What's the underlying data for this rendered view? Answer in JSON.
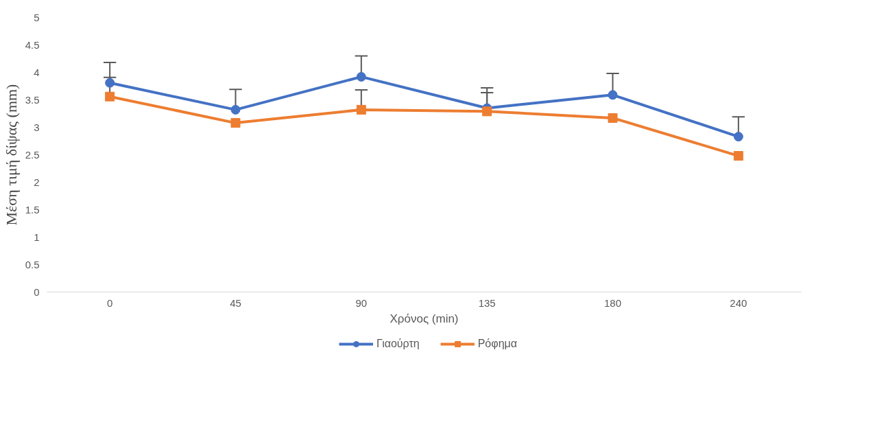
{
  "chart_data": {
    "type": "line",
    "xlabel": "Χρόνος (min)",
    "ylabel": "Μέση τιμή δίψας (mm)",
    "categories": [
      "0",
      "45",
      "90",
      "135",
      "180",
      "240"
    ],
    "ylim": [
      0,
      5
    ],
    "yticks": [
      0,
      0.5,
      1,
      1.5,
      2,
      2.5,
      3,
      3.5,
      4,
      4.5,
      5
    ],
    "grid": false,
    "legend": "bottom",
    "line_style": "solid",
    "series": [
      {
        "name": "Γιαούρτη",
        "color": "#4472c4",
        "marker": "circle",
        "values": [
          3.81,
          3.32,
          3.92,
          3.35,
          3.59,
          2.83
        ],
        "errors": [
          [
            3.81,
            4.18
          ],
          [
            3.32,
            3.69
          ],
          [
            3.92,
            4.3
          ],
          [
            3.35,
            3.72
          ],
          [
            3.59,
            3.98
          ],
          [
            2.83,
            3.19
          ]
        ]
      },
      {
        "name": "Ρόφημα",
        "color": "#ed7d31",
        "marker": "square",
        "values": [
          3.56,
          3.08,
          3.32,
          3.29,
          3.17,
          2.48
        ],
        "errors": [
          [
            3.56,
            3.91
          ],
          null,
          [
            3.32,
            3.68
          ],
          [
            3.29,
            3.63
          ],
          null,
          null
        ]
      }
    ]
  }
}
